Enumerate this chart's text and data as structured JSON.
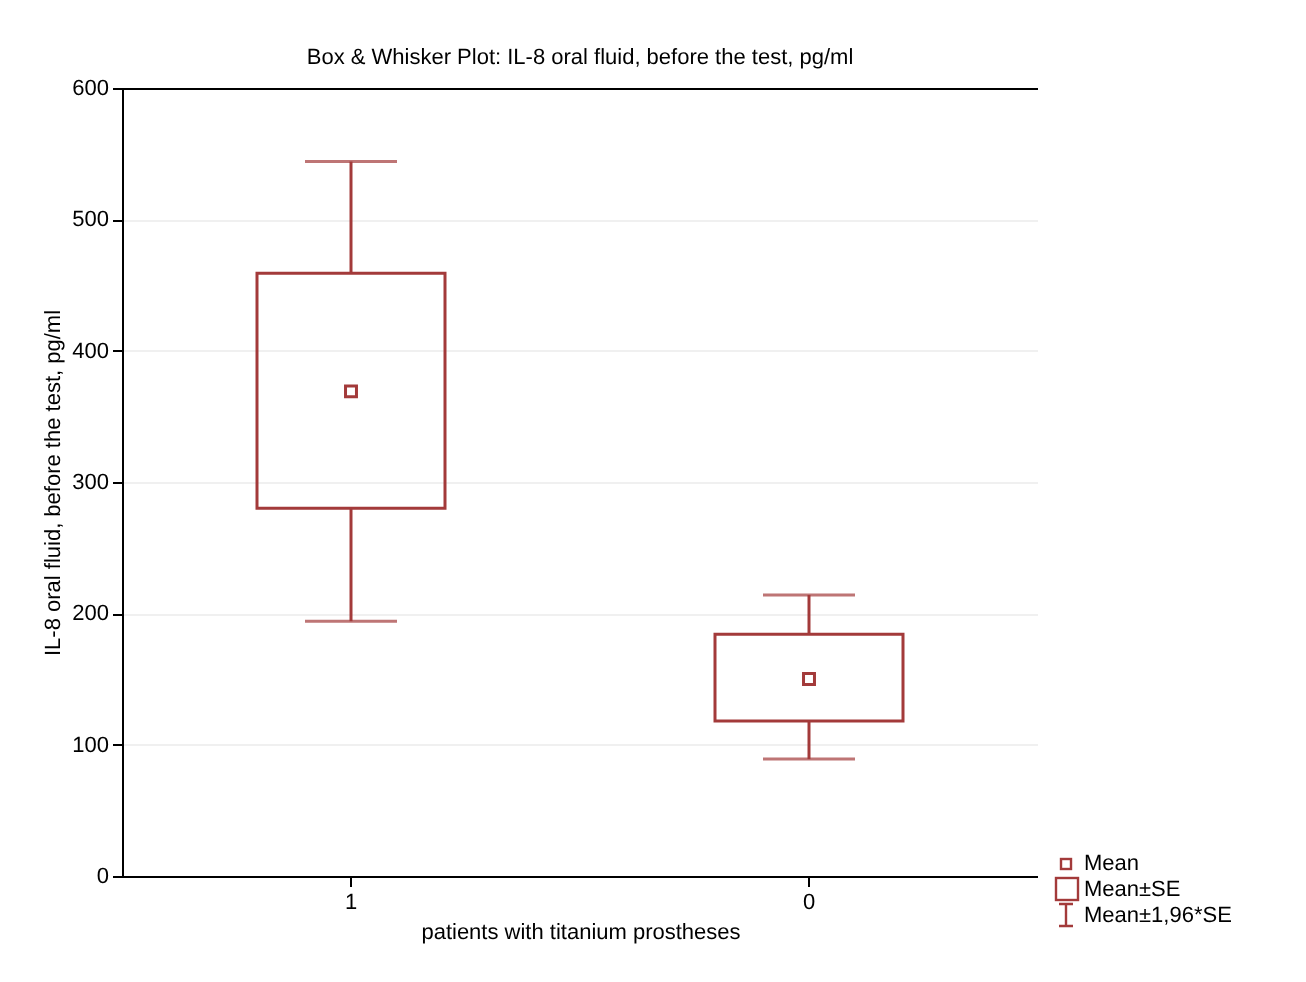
{
  "chart_data": {
    "type": "box",
    "title": "Box & Whisker Plot: IL-8 oral fluid, before the test, pg/ml",
    "xlabel": "patients with titanium prostheses",
    "ylabel": "IL-8 oral fluid, before the test, pg/ml",
    "categories": [
      "1",
      "0"
    ],
    "series": [
      {
        "color": "#a33a3a",
        "boxes": [
          {
            "low": 194,
            "q1": 280,
            "median": 369,
            "q3": 459,
            "high": 544
          },
          {
            "low": 89,
            "q1": 118,
            "median": 150,
            "q3": 184,
            "high": 214
          }
        ]
      }
    ],
    "ylim": [
      0,
      600
    ],
    "yticks": [
      0,
      100,
      200,
      300,
      400,
      500,
      600
    ],
    "grid": "y",
    "annotations": [
      "Mean",
      "Mean±SE",
      "Mean±1,96*SE"
    ]
  }
}
